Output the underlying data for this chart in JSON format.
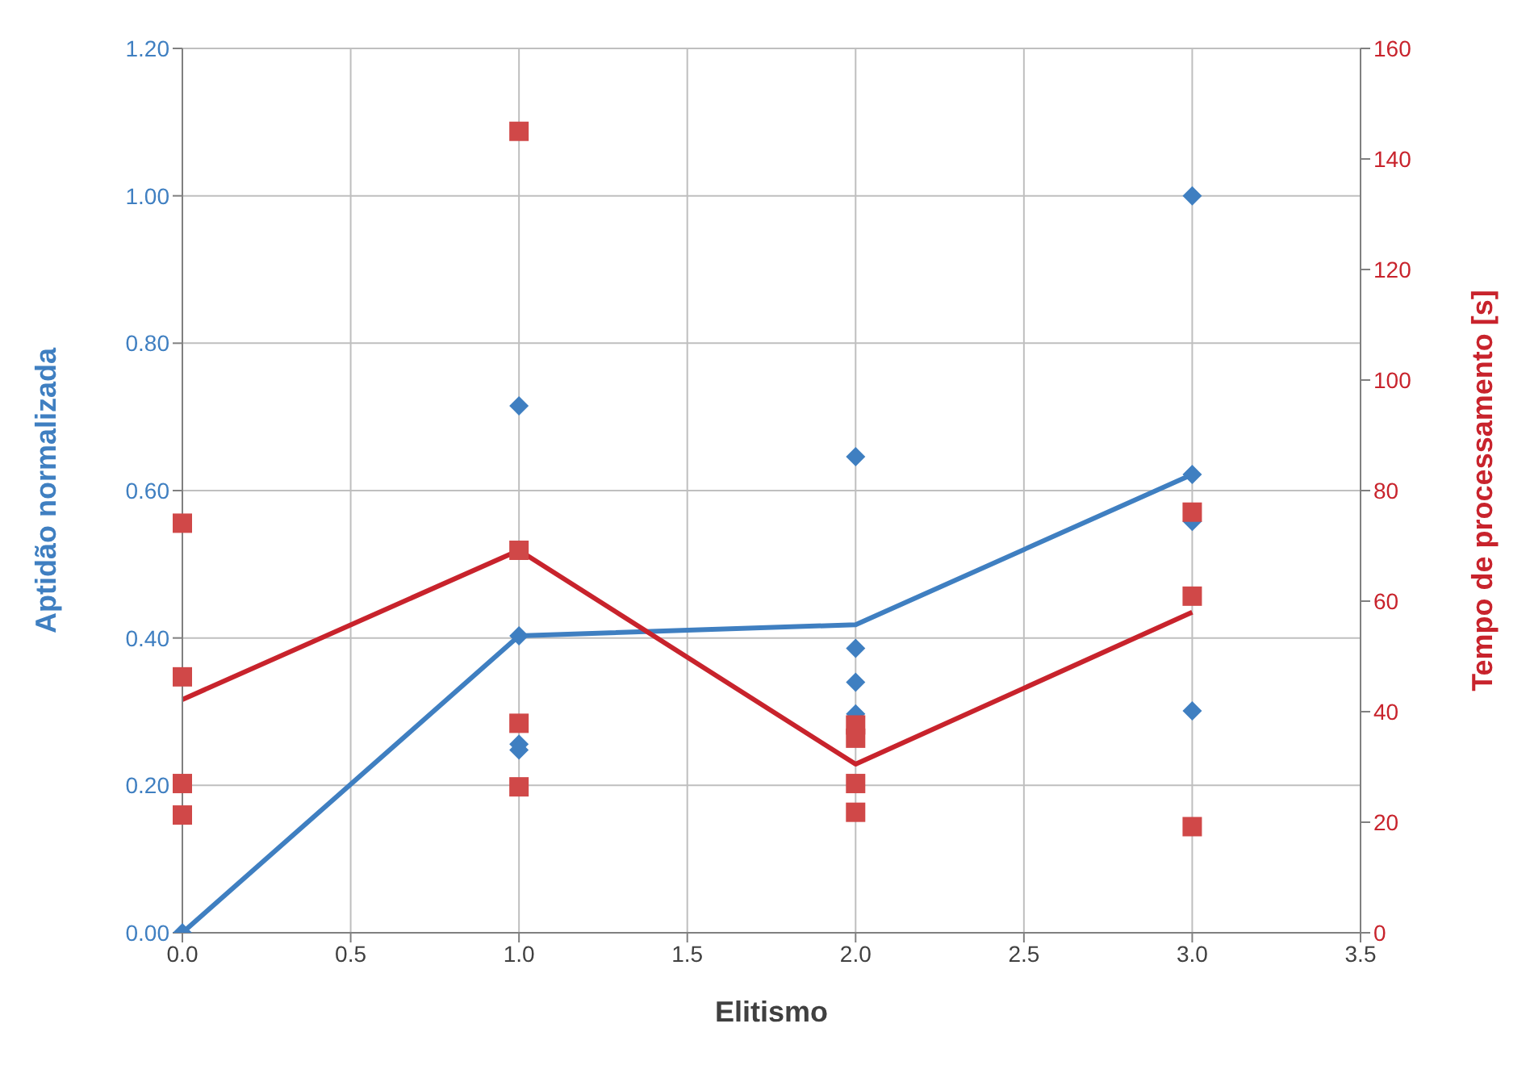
{
  "chart_data": {
    "type": "scatter",
    "xlabel": "Elitismo",
    "ylabel": "Aptidão normalizada",
    "y2label": "Tempo de processamento [s]",
    "xlim": [
      0,
      3.5
    ],
    "xticks": [
      {
        "value": 0,
        "label": "0.0"
      },
      {
        "value": 0.5,
        "label": "0.5"
      },
      {
        "value": 1,
        "label": "1.0"
      },
      {
        "value": 1.5,
        "label": "1.5"
      },
      {
        "value": 2,
        "label": "2.0"
      },
      {
        "value": 2.5,
        "label": "2.5"
      },
      {
        "value": 3,
        "label": "3.0"
      },
      {
        "value": 3.5,
        "label": "3.5"
      }
    ],
    "ylim": [
      0,
      1.2
    ],
    "yticks": [
      {
        "value": 0,
        "label": "0.00"
      },
      {
        "value": 0.2,
        "label": "0.20"
      },
      {
        "value": 0.4,
        "label": "0.40"
      },
      {
        "value": 0.6,
        "label": "0.60"
      },
      {
        "value": 0.8,
        "label": "0.80"
      },
      {
        "value": 1,
        "label": "1.00"
      },
      {
        "value": 1.2,
        "label": "1.20"
      }
    ],
    "y2lim": [
      0,
      160
    ],
    "y2ticks": [
      0,
      20,
      40,
      60,
      80,
      100,
      120,
      140,
      160
    ],
    "grid": true,
    "legend": false,
    "series": [
      {
        "color": "#3f7fc1",
        "marker": "diamond",
        "x": [
          0,
          1,
          1,
          1,
          1,
          2,
          2,
          2,
          2,
          3,
          3,
          3,
          3
        ],
        "values": [
          0,
          0.715,
          0.403,
          0.256,
          0.248,
          0.646,
          0.386,
          0.34,
          0.297,
          1.0,
          0.622,
          0.558,
          0.301
        ]
      },
      {
        "color": "#d04848",
        "marker": "square",
        "axis": "y2",
        "x": [
          0,
          0,
          0,
          0,
          1,
          1,
          1,
          1,
          2,
          2,
          2,
          2,
          3,
          3,
          3
        ],
        "values": [
          74.1,
          46.3,
          27,
          21.3,
          145,
          69.2,
          37.9,
          26.4,
          37.6,
          35.2,
          27,
          21.8,
          76.1,
          60.9,
          19.2
        ]
      },
      {
        "type": "line",
        "color": "#3f7fc1",
        "marker": "none",
        "x": [
          0,
          1,
          2,
          3
        ],
        "values": [
          0,
          0.403,
          0.418,
          0.622
        ]
      },
      {
        "type": "line",
        "color": "#c8232c",
        "marker": "none",
        "axis": "y2",
        "x": [
          0,
          1,
          2,
          3
        ],
        "values": [
          42.2,
          69.2,
          30.5,
          58.0
        ]
      }
    ]
  }
}
